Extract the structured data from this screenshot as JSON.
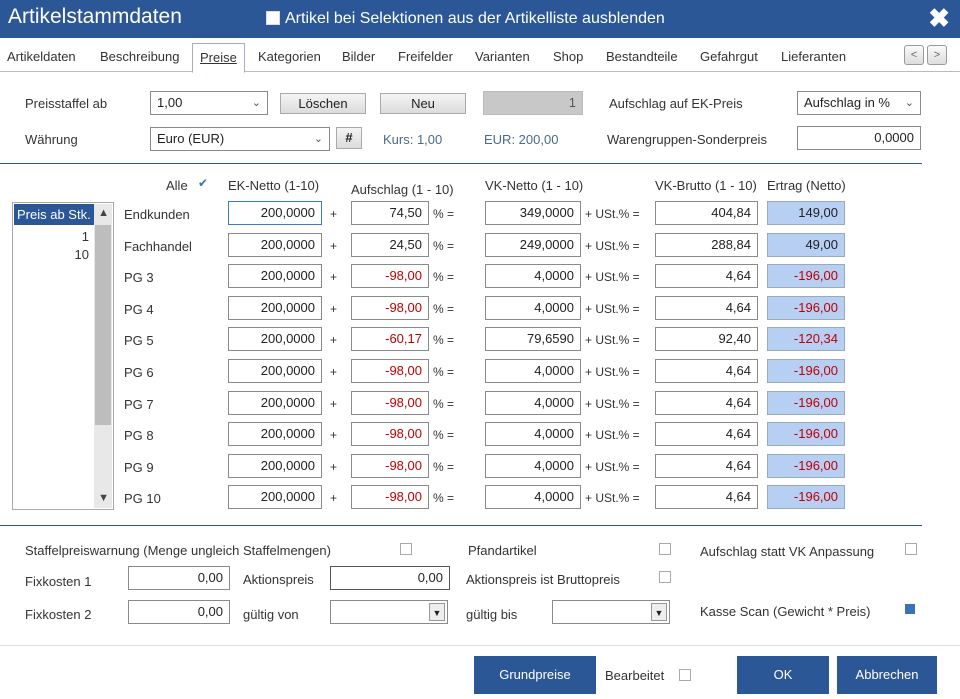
{
  "window": {
    "title": "Artikelstammdaten",
    "hide_option": "Artikel bei Selektionen aus der Artikelliste ausblenden",
    "close_glyph": "✖"
  },
  "tabs": [
    "Artikeldaten",
    "Beschreibung",
    "Preise",
    "Kategorien",
    "Bilder",
    "Freifelder",
    "Varianten",
    "Shop",
    "Bestandteile",
    "Gefahrgut",
    "Lieferanten"
  ],
  "nav": {
    "prev": "<",
    "next": ">"
  },
  "top": {
    "preisstaffel_label": "Preisstaffel ab",
    "preisstaffel_value": "1,00",
    "loeschen": "Löschen",
    "neu": "Neu",
    "staffel_number": "1",
    "aufschlag_ek_label": "Aufschlag auf EK-Preis",
    "aufschlag_mode": "Aufschlag in %",
    "waehrung_label": "Währung",
    "waehrung_value": "Euro (EUR)",
    "hash_btn": "#",
    "kurs": "Kurs: 1,00",
    "eur": "EUR: 200,00",
    "sonderpreis_label": "Warengruppen-Sonderpreis",
    "sonderpreis_value": "0,0000"
  },
  "grid": {
    "alle_label": "Alle",
    "alle_check": "✔",
    "headers": {
      "ek": "EK-Netto (1-10)",
      "aufschlag": "Aufschlag (1 - 10)",
      "vk": "VK-Netto (1 - 10)",
      "brutto": "VK-Brutto (1 - 10)",
      "ertrag": "Ertrag (Netto)"
    },
    "plus": "+",
    "percent_eq": "% =",
    "ust": "+ USt.% =",
    "rows": [
      {
        "name": "Endkunden",
        "ek": "200,0000",
        "aufschlag": "74,50",
        "vk": "349,0000",
        "brutto": "404,84",
        "ertrag": "149,00"
      },
      {
        "name": "Fachhandel",
        "ek": "200,0000",
        "aufschlag": "24,50",
        "vk": "249,0000",
        "brutto": "288,84",
        "ertrag": "49,00"
      },
      {
        "name": "PG 3",
        "ek": "200,0000",
        "aufschlag": "-98,00",
        "vk": "4,0000",
        "brutto": "4,64",
        "ertrag": "-196,00"
      },
      {
        "name": "PG 4",
        "ek": "200,0000",
        "aufschlag": "-98,00",
        "vk": "4,0000",
        "brutto": "4,64",
        "ertrag": "-196,00"
      },
      {
        "name": "PG 5",
        "ek": "200,0000",
        "aufschlag": "-60,17",
        "vk": "79,6590",
        "brutto": "92,40",
        "ertrag": "-120,34"
      },
      {
        "name": "PG 6",
        "ek": "200,0000",
        "aufschlag": "-98,00",
        "vk": "4,0000",
        "brutto": "4,64",
        "ertrag": "-196,00"
      },
      {
        "name": "PG 7",
        "ek": "200,0000",
        "aufschlag": "-98,00",
        "vk": "4,0000",
        "brutto": "4,64",
        "ertrag": "-196,00"
      },
      {
        "name": "PG 8",
        "ek": "200,0000",
        "aufschlag": "-98,00",
        "vk": "4,0000",
        "brutto": "4,64",
        "ertrag": "-196,00"
      },
      {
        "name": "PG 9",
        "ek": "200,0000",
        "aufschlag": "-98,00",
        "vk": "4,0000",
        "brutto": "4,64",
        "ertrag": "-196,00"
      },
      {
        "name": "PG 10",
        "ek": "200,0000",
        "aufschlag": "-98,00",
        "vk": "4,0000",
        "brutto": "4,64",
        "ertrag": "-196,00"
      }
    ]
  },
  "staffel_list": {
    "header": "Preis ab Stk.",
    "items": [
      "1",
      "10"
    ],
    "up": "▲",
    "down": "▼"
  },
  "bottom": {
    "warnung": "Staffelpreiswarnung (Menge ungleich Staffelmengen)",
    "pfand": "Pfandartikel",
    "aufschlag_statt": "Aufschlag statt VK Anpassung",
    "fixkosten1_label": "Fixkosten 1",
    "fixkosten1": "0,00",
    "aktionspreis_label": "Aktionspreis",
    "aktionspreis": "0,00",
    "aktionspreis_brutto": "Aktionspreis ist Bruttopreis",
    "fixkosten2_label": "Fixkosten 2",
    "fixkosten2": "0,00",
    "gueltig_von": "gültig von",
    "gueltig_bis": "gültig bis",
    "kasse_scan": "Kasse Scan (Gewicht * Preis)",
    "dd_arrow": "▼"
  },
  "footer": {
    "grundpreise": "Grundpreise",
    "bearbeitet": "Bearbeitet",
    "ok": "OK",
    "abbrechen": "Abbrechen"
  },
  "colors": {
    "accent": "#2b5797",
    "ertrag_bg": "#b6cff2",
    "negative": "#c00000"
  }
}
